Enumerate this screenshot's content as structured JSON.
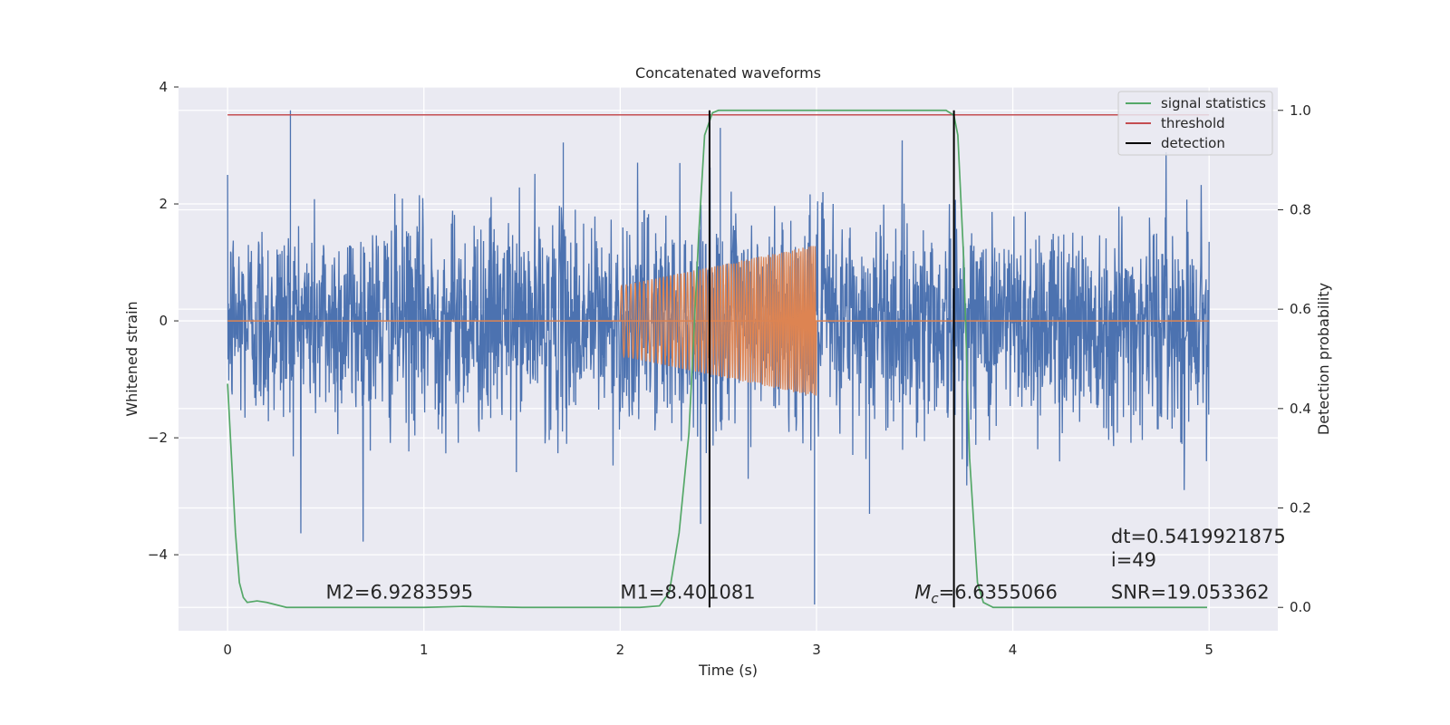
{
  "chart_data": {
    "type": "line",
    "title": "Concatenated waveforms",
    "xlabel": "Time (s)",
    "ylabel": "Whitened strain",
    "y2label": "Detection probability",
    "xlim": [
      -0.25,
      5.35
    ],
    "ylim": [
      -5.3,
      4.0
    ],
    "y2lim": [
      -0.047,
      1.047
    ],
    "xticks": [
      0,
      1,
      2,
      3,
      4,
      5
    ],
    "yticks": [
      -4,
      -2,
      0,
      2,
      4
    ],
    "y2ticks": [
      0.0,
      0.2,
      0.4,
      0.6,
      0.8,
      1.0
    ],
    "xtick_labels": [
      "0",
      "1",
      "2",
      "3",
      "4",
      "5"
    ],
    "ytick_labels": [
      "−4",
      "−2",
      "0",
      "2",
      "4"
    ],
    "y2tick_labels": [
      "0.0",
      "0.2",
      "0.4",
      "0.6",
      "0.8",
      "1.0"
    ],
    "grid": true,
    "legend_position": "top-right",
    "colors": {
      "strain": "#4c72b0",
      "template": "#dd8452",
      "signal_statistics": "#55a868",
      "threshold": "#c44e52",
      "detection": "#000000",
      "background": "#eaeaf2"
    },
    "series": [
      {
        "name": "",
        "axis": "left",
        "kind": "noise-strain",
        "x_range": [
          0,
          5
        ],
        "amplitude_range": [
          -4.85,
          3.6
        ],
        "typical_std": 0.9
      },
      {
        "name": "",
        "axis": "left",
        "kind": "chirp-template",
        "x_range": [
          2.0,
          3.0
        ],
        "amplitude_start": 0.6,
        "amplitude_end": 1.3,
        "baseline": 0.0,
        "baseline_x_range": [
          0,
          5
        ]
      },
      {
        "name": "signal statistics",
        "axis": "right",
        "x": [
          0.0,
          0.02,
          0.04,
          0.06,
          0.08,
          0.1,
          0.15,
          0.2,
          0.3,
          0.5,
          1.0,
          1.2,
          1.5,
          2.0,
          2.1,
          2.2,
          2.25,
          2.3,
          2.35,
          2.4,
          2.43,
          2.47,
          2.5,
          2.6,
          3.0,
          3.5,
          3.66,
          3.7,
          3.72,
          3.75,
          3.78,
          3.82,
          3.85,
          3.9,
          4.0,
          4.5,
          4.99
        ],
        "y": [
          0.45,
          0.3,
          0.15,
          0.05,
          0.02,
          0.01,
          0.013,
          0.01,
          0.0,
          0.0,
          0.0,
          0.002,
          0.0,
          0.0,
          0.0,
          0.003,
          0.03,
          0.15,
          0.35,
          0.75,
          0.95,
          0.995,
          1.0,
          1.0,
          1.0,
          1.0,
          1.0,
          0.99,
          0.95,
          0.7,
          0.3,
          0.05,
          0.01,
          0.0,
          0.0,
          0.0,
          0.0
        ]
      },
      {
        "name": "threshold",
        "axis": "right",
        "x": [
          0,
          5
        ],
        "y": [
          0.991,
          0.991
        ]
      },
      {
        "name": "detection",
        "axis": "right",
        "vlines": [
          2.455,
          3.7
        ],
        "ymin": 0.0,
        "ymax": 1.0
      }
    ],
    "legend": [
      "signal statistics",
      "threshold",
      "detection"
    ],
    "annotations": [
      {
        "text": "M2=6.9283595",
        "x": 0.5,
        "y": -4.75
      },
      {
        "text": "M1=8.401081",
        "x": 2.0,
        "y": -4.75
      },
      {
        "text_math_symbol": "M",
        "text_math_subscript": "c",
        "text_rest": "=6.6355066",
        "x": 3.5,
        "y": -4.75
      },
      {
        "text": "dt=0.5419921875",
        "x": 4.5,
        "y": -3.8
      },
      {
        "text": " i=49",
        "x": 4.5,
        "y": -4.2
      },
      {
        "text": "SNR=19.053362",
        "x": 4.5,
        "y": -4.75
      }
    ]
  }
}
